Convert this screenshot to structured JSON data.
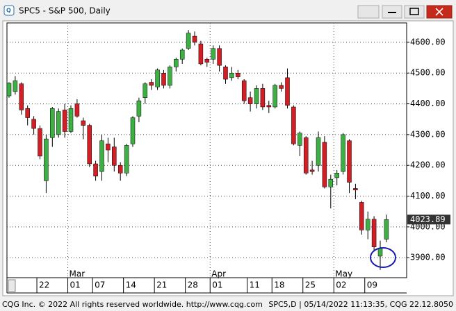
{
  "window_title": "SPC5 - S&P 500, Daily",
  "status_left": "CQG Inc. © 2022 All rights reserved worldwide. http://www.cqg.com",
  "status_right": "SPC5,D | 05/14/2022 11:13:35, CQG 22.12.8050",
  "chart_data": {
    "type": "candlestick",
    "categories": [
      null,
      null,
      null,
      null,
      null,
      "22",
      null,
      null,
      null,
      null,
      "01",
      null,
      null,
      null,
      "07",
      null,
      null,
      null,
      null,
      "14",
      null,
      null,
      null,
      null,
      "21",
      null,
      null,
      null,
      null,
      "28",
      null,
      null,
      null,
      "01",
      null,
      null,
      null,
      null,
      null,
      "11",
      null,
      null,
      null,
      "18",
      null,
      null,
      null,
      null,
      "25",
      null,
      null,
      null,
      null,
      "02",
      null,
      null,
      null,
      null,
      "09",
      null,
      null,
      null
    ],
    "months": [
      null,
      null,
      null,
      null,
      null,
      null,
      null,
      null,
      null,
      null,
      "Mar",
      null,
      null,
      null,
      null,
      null,
      null,
      null,
      null,
      null,
      null,
      null,
      null,
      null,
      null,
      null,
      null,
      null,
      null,
      null,
      null,
      null,
      null,
      "Apr",
      null,
      null,
      null,
      null,
      null,
      null,
      null,
      null,
      null,
      null,
      null,
      null,
      null,
      null,
      null,
      null,
      null,
      null,
      null,
      "May",
      null,
      null,
      null,
      null,
      null,
      null,
      null,
      null
    ],
    "open": [
      4426,
      4440,
      4465,
      4385,
      4350,
      4320,
      4150,
      4290,
      4300,
      4380,
      4310,
      4400,
      4345,
      4330,
      4205,
      4180,
      4270,
      4260,
      4200,
      4175,
      4270,
      4360,
      4420,
      4470,
      4455,
      4500,
      4460,
      4520,
      4545,
      4580,
      4620,
      4595,
      4545,
      4545,
      4580,
      4520,
      4485,
      4500,
      4475,
      4420,
      4400,
      4450,
      4395,
      4390,
      4460,
      4485,
      4390,
      4265,
      4290,
      4185,
      4200,
      4275,
      4130,
      4160,
      4180,
      4280,
      4125,
      4080,
      3990,
      4025,
      3905,
      3960
    ],
    "high": [
      4470,
      4490,
      4470,
      4395,
      4360,
      4330,
      4300,
      4390,
      4385,
      4400,
      4395,
      4415,
      4355,
      4335,
      4215,
      4300,
      4290,
      4290,
      4210,
      4270,
      4360,
      4420,
      4470,
      4480,
      4515,
      4510,
      4525,
      4550,
      4580,
      4640,
      4635,
      4605,
      4550,
      4590,
      4590,
      4525,
      4520,
      4510,
      4480,
      4440,
      4460,
      4465,
      4410,
      4465,
      4470,
      4515,
      4395,
      4310,
      4295,
      4215,
      4310,
      4295,
      4170,
      4185,
      4305,
      4285,
      4140,
      4085,
      4050,
      4035,
      3955,
      4040
    ],
    "low": [
      4420,
      4430,
      4365,
      4330,
      4300,
      4220,
      4110,
      4260,
      4290,
      4290,
      4305,
      4355,
      4285,
      4195,
      4150,
      4150,
      4210,
      4180,
      4150,
      4165,
      4260,
      4340,
      4400,
      4445,
      4445,
      4450,
      4450,
      4505,
      4530,
      4575,
      4590,
      4525,
      4520,
      4530,
      4505,
      4465,
      4475,
      4480,
      4400,
      4375,
      4385,
      4380,
      4370,
      4385,
      4440,
      4385,
      4265,
      4230,
      4170,
      4170,
      4180,
      4125,
      4060,
      4135,
      4170,
      4110,
      4090,
      3975,
      3960,
      3920,
      3860,
      3950
    ],
    "close": [
      4467,
      4475,
      4380,
      4355,
      4320,
      4230,
      4286,
      4385,
      4375,
      4310,
      4385,
      4360,
      4330,
      4205,
      4165,
      4280,
      4250,
      4200,
      4175,
      4265,
      4355,
      4410,
      4465,
      4460,
      4510,
      4460,
      4520,
      4545,
      4575,
      4630,
      4600,
      4530,
      4535,
      4580,
      4525,
      4480,
      4500,
      4488,
      4410,
      4400,
      4450,
      4390,
      4390,
      4460,
      4450,
      4395,
      4270,
      4305,
      4175,
      4180,
      4290,
      4130,
      4155,
      4175,
      4300,
      4145,
      4120,
      3990,
      4025,
      3935,
      3930,
      4024
    ],
    "up_color": "#3cb043",
    "down_color": "#d21f26",
    "ylim": [
      3835,
      4663
    ],
    "yticks": [
      {
        "value": 3900,
        "label": "3900.00"
      },
      {
        "value": 4000,
        "label": "4000.00"
      },
      {
        "value": 4100,
        "label": "4100.00"
      },
      {
        "value": 4200,
        "label": "4200.00"
      },
      {
        "value": 4300,
        "label": "4300.00"
      },
      {
        "value": 4400,
        "label": "4400.00"
      },
      {
        "value": 4500,
        "label": "4500.00"
      },
      {
        "value": 4600,
        "label": "4600.00"
      }
    ],
    "last_price": 4023.89,
    "grid": true
  }
}
